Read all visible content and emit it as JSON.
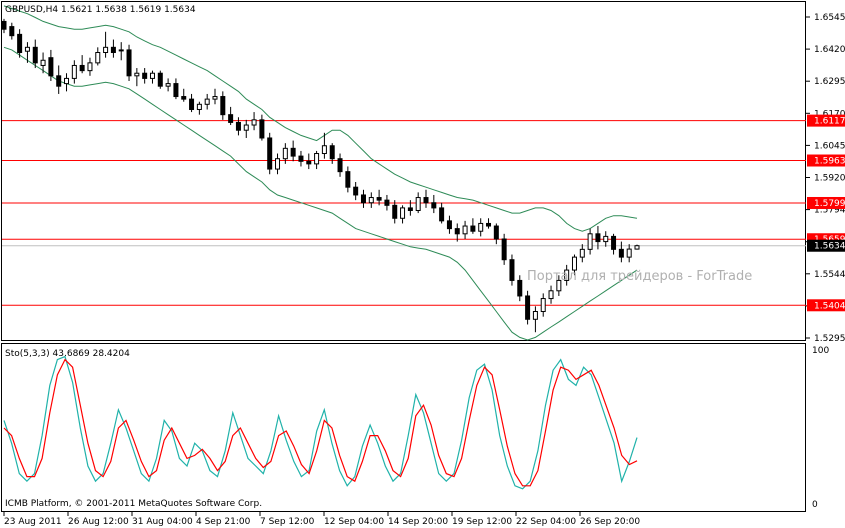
{
  "chart_data": [
    {
      "type": "candlestick",
      "title": "GBPUSD,H4  1.5621 1.5638 1.5619 1.5634",
      "price_ticks": [
        "1.6545",
        "1.6420",
        "1.6295",
        "1.6170",
        "1.6045",
        "1.5920",
        "1.5794",
        "1.5669",
        "1.5544",
        "1.5419",
        "1.5295"
      ],
      "ylim": [
        1.527,
        1.6575
      ],
      "levels": [
        {
          "label": "1.6117",
          "value": 1.6117
        },
        {
          "label": "1.5963",
          "value": 1.5963
        },
        {
          "label": "1.5799",
          "value": 1.5799
        },
        {
          "label": "1.5659",
          "value": 1.5659
        },
        {
          "label": "1.5404",
          "value": 1.5404
        }
      ],
      "current_price": {
        "label": "1.5634",
        "value": 1.5634
      },
      "watermark": "Портал для трейдеров - ForTrade",
      "colors": {
        "level": "#ff0000",
        "band": "#2e8b57",
        "candle": "#000000"
      },
      "ohlc": [
        [
          1.65,
          1.651,
          1.6455,
          1.647
        ],
        [
          1.648,
          1.6495,
          1.643,
          1.6445
        ],
        [
          1.645,
          1.647,
          1.636,
          1.638
        ],
        [
          1.6385,
          1.642,
          1.634,
          1.64
        ],
        [
          1.64,
          1.643,
          1.632,
          1.634
        ],
        [
          1.633,
          1.638,
          1.63,
          1.635
        ],
        [
          1.636,
          1.639,
          1.627,
          1.629
        ],
        [
          1.629,
          1.633,
          1.622,
          1.625
        ],
        [
          1.626,
          1.63,
          1.623,
          1.628
        ],
        [
          1.628,
          1.635,
          1.626,
          1.633
        ],
        [
          1.633,
          1.637,
          1.63,
          1.631
        ],
        [
          1.631,
          1.636,
          1.629,
          1.634
        ],
        [
          1.634,
          1.64,
          1.633,
          1.638
        ],
        [
          1.638,
          1.646,
          1.636,
          1.64
        ],
        [
          1.64,
          1.643,
          1.636,
          1.638
        ],
        [
          1.639,
          1.642,
          1.635,
          1.639
        ],
        [
          1.639,
          1.641,
          1.627,
          1.629
        ],
        [
          1.629,
          1.632,
          1.625,
          1.63
        ],
        [
          1.63,
          1.632,
          1.626,
          1.628
        ],
        [
          1.628,
          1.631,
          1.626,
          1.63
        ],
        [
          1.63,
          1.631,
          1.624,
          1.625
        ],
        [
          1.625,
          1.628,
          1.623,
          1.626
        ],
        [
          1.626,
          1.628,
          1.62,
          1.621
        ],
        [
          1.621,
          1.624,
          1.619,
          1.62
        ],
        [
          1.62,
          1.622,
          1.615,
          1.616
        ],
        [
          1.616,
          1.619,
          1.614,
          1.618
        ],
        [
          1.618,
          1.622,
          1.616,
          1.62
        ],
        [
          1.62,
          1.624,
          1.618,
          1.621
        ],
        [
          1.621,
          1.623,
          1.612,
          1.614
        ],
        [
          1.614,
          1.617,
          1.61,
          1.611
        ],
        [
          1.611,
          1.613,
          1.606,
          1.608
        ],
        [
          1.608,
          1.612,
          1.605,
          1.61
        ],
        [
          1.61,
          1.615,
          1.608,
          1.612
        ],
        [
          1.612,
          1.614,
          1.604,
          1.605
        ],
        [
          1.605,
          1.607,
          1.591,
          1.593
        ],
        [
          1.593,
          1.599,
          1.591,
          1.597
        ],
        [
          1.597,
          1.603,
          1.595,
          1.601
        ],
        [
          1.601,
          1.604,
          1.596,
          1.598
        ],
        [
          1.598,
          1.6,
          1.594,
          1.596
        ],
        [
          1.596,
          1.599,
          1.593,
          1.595
        ],
        [
          1.595,
          1.6,
          1.593,
          1.599
        ],
        [
          1.599,
          1.607,
          1.597,
          1.602
        ],
        [
          1.602,
          1.603,
          1.595,
          1.597
        ],
        [
          1.597,
          1.599,
          1.59,
          1.592
        ],
        [
          1.592,
          1.594,
          1.584,
          1.586
        ],
        [
          1.586,
          1.588,
          1.581,
          1.583
        ],
        [
          1.583,
          1.585,
          1.578,
          1.58
        ],
        [
          1.58,
          1.584,
          1.578,
          1.582
        ],
        [
          1.582,
          1.585,
          1.579,
          1.581
        ],
        [
          1.581,
          1.583,
          1.577,
          1.579
        ],
        [
          1.579,
          1.581,
          1.572,
          1.574
        ],
        [
          1.574,
          1.579,
          1.572,
          1.578
        ],
        [
          1.578,
          1.581,
          1.575,
          1.577
        ],
        [
          1.577,
          1.584,
          1.576,
          1.582
        ],
        [
          1.582,
          1.585,
          1.578,
          1.58
        ],
        [
          1.58,
          1.583,
          1.576,
          1.578
        ],
        [
          1.578,
          1.58,
          1.572,
          1.573
        ],
        [
          1.573,
          1.575,
          1.568,
          1.57
        ],
        [
          1.57,
          1.572,
          1.565,
          1.568
        ],
        [
          1.568,
          1.573,
          1.566,
          1.571
        ],
        [
          1.571,
          1.574,
          1.568,
          1.569
        ],
        [
          1.569,
          1.574,
          1.567,
          1.572
        ],
        [
          1.572,
          1.574,
          1.57,
          1.571
        ],
        [
          1.571,
          1.572,
          1.564,
          1.566
        ],
        [
          1.566,
          1.568,
          1.556,
          1.558
        ],
        [
          1.558,
          1.56,
          1.548,
          1.55
        ],
        [
          1.55,
          1.552,
          1.542,
          1.544
        ],
        [
          1.544,
          1.546,
          1.533,
          1.535
        ],
        [
          1.535,
          1.54,
          1.53,
          1.538
        ],
        [
          1.538,
          1.545,
          1.536,
          1.543
        ],
        [
          1.543,
          1.548,
          1.541,
          1.546
        ],
        [
          1.546,
          1.552,
          1.544,
          1.55
        ],
        [
          1.55,
          1.556,
          1.548,
          1.554
        ],
        [
          1.554,
          1.56,
          1.552,
          1.559
        ],
        [
          1.559,
          1.564,
          1.557,
          1.562
        ],
        [
          1.562,
          1.57,
          1.56,
          1.568
        ],
        [
          1.568,
          1.571,
          1.562,
          1.565
        ],
        [
          1.565,
          1.569,
          1.563,
          1.567
        ],
        [
          1.567,
          1.568,
          1.56,
          1.562
        ],
        [
          1.562,
          1.565,
          1.557,
          1.559
        ],
        [
          1.559,
          1.564,
          1.557,
          1.5621
        ],
        [
          1.5621,
          1.5638,
          1.5619,
          1.5634
        ]
      ],
      "bands_upper": [
        1.656,
        1.655,
        1.654,
        1.653,
        1.6515,
        1.65,
        1.649,
        1.648,
        1.6475,
        1.647,
        1.647,
        1.6475,
        1.648,
        1.6485,
        1.648,
        1.647,
        1.646,
        1.644,
        1.6425,
        1.641,
        1.64,
        1.6385,
        1.637,
        1.6355,
        1.634,
        1.6325,
        1.631,
        1.629,
        1.627,
        1.625,
        1.623,
        1.62,
        1.618,
        1.616,
        1.613,
        1.611,
        1.609,
        1.6075,
        1.606,
        1.605,
        1.604,
        1.606,
        1.608,
        1.608,
        1.606,
        1.603,
        1.6,
        1.597,
        1.595,
        1.593,
        1.591,
        1.5895,
        1.588,
        1.587,
        1.586,
        1.585,
        1.584,
        1.583,
        1.582,
        1.5815,
        1.581,
        1.58,
        1.579,
        1.578,
        1.577,
        1.576,
        1.576,
        1.577,
        1.578,
        1.578,
        1.577,
        1.575,
        1.572,
        1.57,
        1.569,
        1.57,
        1.572,
        1.574,
        1.575,
        1.575,
        1.5745,
        1.574
      ],
      "bands_lower": [
        1.64,
        1.639,
        1.637,
        1.635,
        1.633,
        1.631,
        1.629,
        1.627,
        1.626,
        1.625,
        1.625,
        1.6255,
        1.626,
        1.6265,
        1.626,
        1.625,
        1.624,
        1.622,
        1.62,
        1.618,
        1.616,
        1.614,
        1.612,
        1.61,
        1.608,
        1.606,
        1.604,
        1.602,
        1.6,
        1.598,
        1.595,
        1.592,
        1.59,
        1.588,
        1.585,
        1.583,
        1.582,
        1.581,
        1.58,
        1.579,
        1.578,
        1.577,
        1.576,
        1.574,
        1.572,
        1.57,
        1.569,
        1.568,
        1.567,
        1.566,
        1.565,
        1.564,
        1.563,
        1.5625,
        1.562,
        1.561,
        1.56,
        1.559,
        1.557,
        1.554,
        1.55,
        1.546,
        1.542,
        1.538,
        1.534,
        1.53,
        1.528,
        1.527,
        1.528,
        1.53,
        1.532,
        1.534,
        1.536,
        1.538,
        1.54,
        1.542,
        1.544,
        1.546,
        1.548,
        1.55,
        1.552,
        1.554
      ]
    },
    {
      "type": "line",
      "title": "Sto(5,3,3) 43.6869 28.4204",
      "ylim": [
        0,
        100
      ],
      "y_ticks": [
        "100",
        "0"
      ],
      "watermark": "ICMB Platform, © 2001-2011 MetaQuotes Software Corp.",
      "x_tick_labels": [
        "23 Aug 2011",
        "26 Aug 12:00",
        "31 Aug 04:00",
        "4 Sep 21:00",
        "7 Sep 12:00",
        "12 Sep 04:00",
        "14 Sep 20:00",
        "19 Sep 12:00",
        "22 Sep 04:00",
        "26 Sep 20:00"
      ],
      "series": [
        {
          "color": "#20b2aa",
          "values": [
            55,
            40,
            20,
            15,
            20,
            45,
            78,
            95,
            97,
            80,
            50,
            25,
            15,
            20,
            40,
            62,
            50,
            35,
            20,
            15,
            30,
            55,
            48,
            30,
            25,
            40,
            35,
            22,
            18,
            35,
            60,
            45,
            30,
            25,
            20,
            35,
            58,
            42,
            28,
            18,
            22,
            48,
            62,
            40,
            22,
            12,
            18,
            38,
            52,
            40,
            25,
            15,
            20,
            45,
            72,
            60,
            40,
            20,
            15,
            20,
            42,
            70,
            88,
            92,
            75,
            45,
            25,
            12,
            10,
            15,
            35,
            65,
            88,
            95,
            82,
            78,
            90,
            85,
            70,
            55,
            40,
            15,
            28,
            43.69
          ]
        },
        {
          "color": "#ff0000",
          "values": [
            50,
            45,
            30,
            18,
            18,
            30,
            60,
            85,
            95,
            90,
            65,
            40,
            22,
            18,
            28,
            50,
            55,
            42,
            28,
            18,
            22,
            42,
            50,
            40,
            30,
            32,
            36,
            30,
            22,
            28,
            45,
            50,
            40,
            30,
            24,
            28,
            45,
            48,
            38,
            26,
            20,
            35,
            55,
            50,
            32,
            18,
            15,
            28,
            45,
            45,
            35,
            22,
            18,
            30,
            58,
            65,
            52,
            32,
            20,
            18,
            30,
            55,
            78,
            90,
            85,
            62,
            38,
            20,
            12,
            12,
            22,
            48,
            75,
            90,
            88,
            82,
            85,
            88,
            78,
            64,
            50,
            32,
            26,
            28.42
          ]
        }
      ]
    }
  ]
}
